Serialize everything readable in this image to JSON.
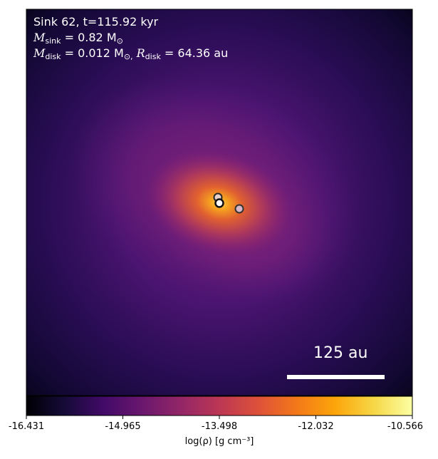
{
  "annotation": {
    "line1": "Sink 62, t=115.92 kyr",
    "msink_symbol": "M",
    "msink_sub": "sink",
    "msink_value": " = 0.82 M",
    "msink_unit": "⊙",
    "mdisk_symbol": "M",
    "mdisk_sub": "disk",
    "mdisk_value": " = 0.012 M",
    "mdisk_unit": "⊙,",
    "rdisk_symbol": "R",
    "rdisk_sub": "disk",
    "rdisk_value": " = 64.36 au"
  },
  "scale_bar": {
    "label": "125 au"
  },
  "colorbar": {
    "label": "log(ρ) [g cm⁻³]",
    "ticks": [
      "-16.431",
      "-14.965",
      "-13.498",
      "-12.032",
      "-10.566"
    ],
    "colormap": "inferno"
  },
  "sinks": [
    {
      "name": "sink-primary",
      "color": "#ffffff"
    },
    {
      "name": "sink-companion-north",
      "color": "#e8d0cc"
    },
    {
      "name": "sink-companion-east",
      "color": "#d8b8c8"
    }
  ]
}
